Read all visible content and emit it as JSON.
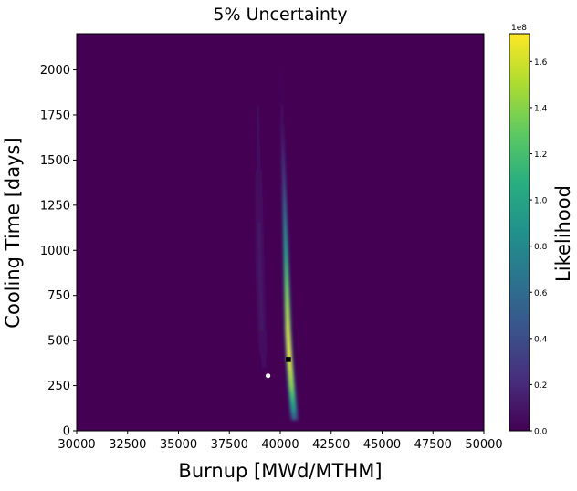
{
  "chart_data": {
    "type": "heatmap",
    "title": "5% Uncertainty",
    "xlabel": "Burnup [MWd/MTHM]",
    "ylabel": "Cooling Time [days]",
    "xlim": [
      30000,
      50000
    ],
    "ylim": [
      0,
      2200
    ],
    "x_ticks": [
      30000,
      32500,
      35000,
      37500,
      40000,
      42500,
      45000,
      47500,
      50000
    ],
    "y_ticks": [
      0,
      250,
      500,
      750,
      1000,
      1250,
      1500,
      1750,
      2000
    ],
    "x_tick_labels": [
      "30000",
      "32500",
      "35000",
      "37500",
      "40000",
      "42500",
      "45000",
      "47500",
      "50000"
    ],
    "y_tick_labels": [
      "0",
      "250",
      "500",
      "750",
      "1000",
      "1250",
      "1500",
      "1750",
      "2000"
    ],
    "colormap": "viridis",
    "background_value": 0,
    "colorbar": {
      "label": "Likelihood",
      "range": [
        0,
        1.72
      ],
      "ticks": [
        0.0,
        0.2,
        0.4,
        0.6,
        0.8,
        1.0,
        1.2,
        1.4,
        1.6
      ],
      "tick_labels": [
        "0.0",
        "0.2",
        "0.4",
        "0.6",
        "0.8",
        "1.0",
        "1.2",
        "1.4",
        "1.6"
      ],
      "offset_label": "1e8"
    },
    "ridges": [
      {
        "description": "high likelihood band",
        "points": [
          {
            "x": 40050,
            "y": 2000,
            "width": 60,
            "value": 0.02
          },
          {
            "x": 40100,
            "y": 1700,
            "width": 90,
            "value": 0.15
          },
          {
            "x": 40180,
            "y": 1400,
            "width": 150,
            "value": 0.45
          },
          {
            "x": 40250,
            "y": 1100,
            "width": 220,
            "value": 0.9
          },
          {
            "x": 40320,
            "y": 800,
            "width": 270,
            "value": 1.35
          },
          {
            "x": 40380,
            "y": 550,
            "width": 300,
            "value": 1.65
          },
          {
            "x": 40450,
            "y": 400,
            "width": 310,
            "value": 1.72
          },
          {
            "x": 40550,
            "y": 250,
            "width": 330,
            "value": 1.45
          },
          {
            "x": 40650,
            "y": 120,
            "width": 340,
            "value": 0.95
          },
          {
            "x": 40700,
            "y": 60,
            "width": 330,
            "value": 0.5
          }
        ]
      },
      {
        "description": "faint secondary band",
        "points": [
          {
            "x": 38900,
            "y": 1800,
            "width": 250,
            "value": 0.03
          },
          {
            "x": 38950,
            "y": 1300,
            "width": 350,
            "value": 0.07
          },
          {
            "x": 39000,
            "y": 900,
            "width": 400,
            "value": 0.1
          },
          {
            "x": 39100,
            "y": 550,
            "width": 400,
            "value": 0.08
          },
          {
            "x": 39200,
            "y": 350,
            "width": 350,
            "value": 0.05
          }
        ]
      }
    ],
    "markers": [
      {
        "name": "white-dot",
        "x": 39400,
        "y": 305,
        "color": "#ffffff",
        "shape": "circle"
      },
      {
        "name": "black-square",
        "x": 40400,
        "y": 395,
        "color": "#000000",
        "shape": "square"
      }
    ]
  }
}
